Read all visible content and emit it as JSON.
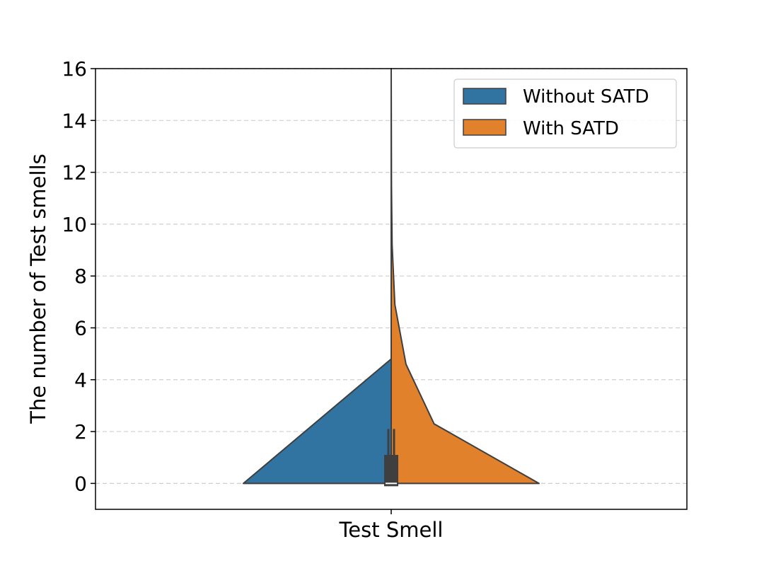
{
  "chart_data": {
    "type": "violin",
    "title": "",
    "xlabel": "Test Smell",
    "ylabel": "The number of Test smells",
    "categories": [
      "Test Smell"
    ],
    "ylim": [
      -1,
      16
    ],
    "yticks": [
      0,
      2,
      4,
      6,
      8,
      10,
      12,
      14,
      16
    ],
    "grid": {
      "y": true,
      "style": "dashed"
    },
    "legend": {
      "position": "top-right"
    },
    "series": [
      {
        "name": "Without SATD",
        "side": "left",
        "color": "#3274a1",
        "density": [
          [
            0,
            1.0
          ],
          [
            4.8,
            0.0
          ],
          [
            16,
            0.0
          ]
        ]
      },
      {
        "name": "With SATD",
        "side": "right",
        "color": "#e1812c",
        "density": [
          [
            0,
            1.0
          ],
          [
            2.3,
            0.29
          ],
          [
            4.6,
            0.1
          ],
          [
            6.9,
            0.025
          ],
          [
            9.2,
            0.006
          ],
          [
            11.5,
            0.002
          ],
          [
            16,
            0.0
          ]
        ]
      }
    ],
    "inner_box": {
      "q1": 0,
      "median": 0,
      "q3": 1.1,
      "whisker_low": 0,
      "whisker_high": 2.1,
      "color": "#3f3f3f"
    }
  }
}
